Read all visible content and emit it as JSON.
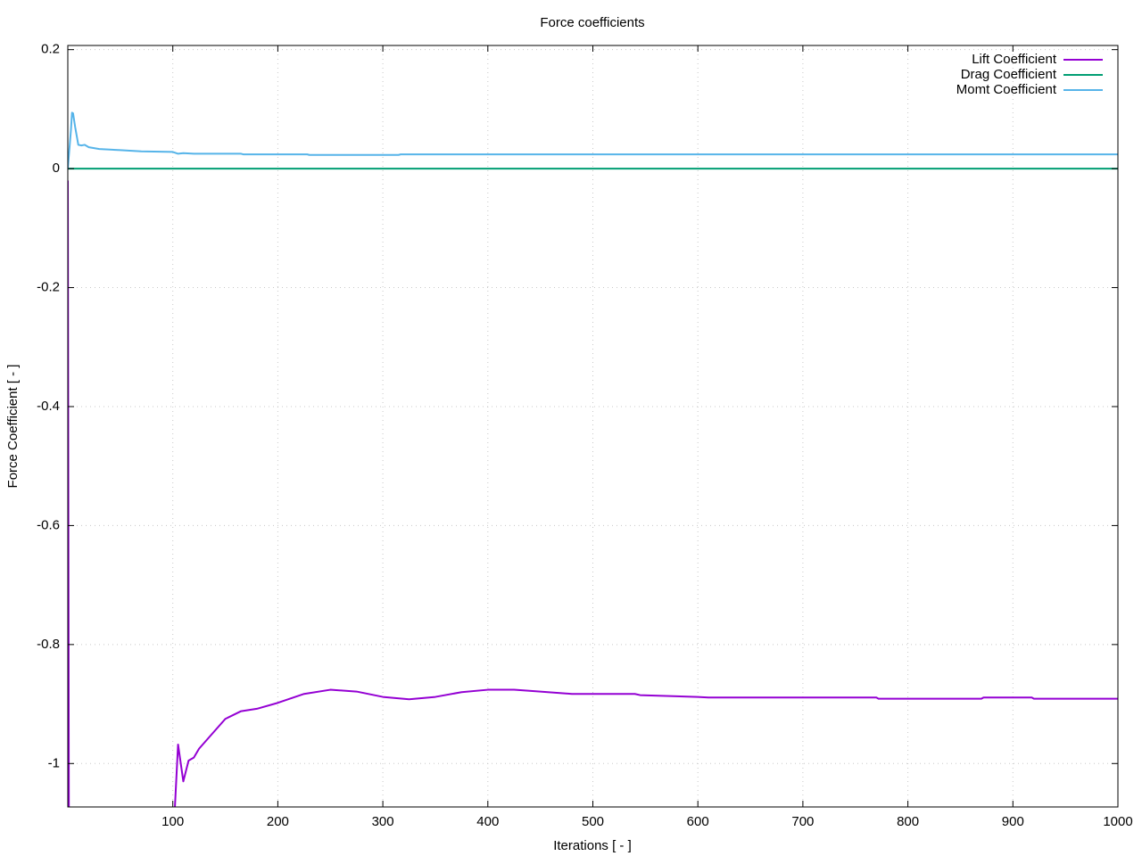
{
  "chart_data": {
    "type": "line",
    "title": "Force coefficients",
    "xlabel": "Iterations [ - ]",
    "ylabel": "Force Coefficient [ - ]",
    "xlim": [
      0,
      1000
    ],
    "ylim": [
      -1.073,
      0.207
    ],
    "xticks": [
      100,
      200,
      300,
      400,
      500,
      600,
      700,
      800,
      900,
      1000
    ],
    "yticks": [
      0.2,
      0,
      -0.2,
      -0.4,
      -0.6,
      -0.8,
      -1
    ],
    "grid": true,
    "legend": "top-right",
    "series": [
      {
        "name": "Lift Coefficient",
        "color": "#9400d3",
        "x": [
          0,
          1,
          50,
          102,
          105,
          110,
          115,
          120,
          125,
          135,
          150,
          165,
          180,
          200,
          225,
          250,
          275,
          300,
          325,
          350,
          375,
          400,
          425,
          450,
          480,
          540,
          545,
          600,
          610,
          770,
          772,
          870,
          872,
          918,
          920,
          1000
        ],
        "values": [
          -0.02,
          -1.073,
          null,
          -1.073,
          -0.968,
          -1.03,
          -0.995,
          -0.99,
          -0.975,
          -0.955,
          -0.925,
          -0.912,
          -0.908,
          -0.898,
          -0.883,
          -0.876,
          -0.879,
          -0.888,
          -0.892,
          -0.888,
          -0.88,
          -0.876,
          -0.876,
          -0.879,
          -0.883,
          -0.883,
          -0.885,
          -0.888,
          -0.889,
          -0.889,
          -0.891,
          -0.891,
          -0.889,
          -0.889,
          -0.891,
          -0.891
        ]
      },
      {
        "name": "Drag Coefficient",
        "color": "#009e73",
        "x": [
          0,
          1000
        ],
        "values": [
          0,
          0
        ]
      },
      {
        "name": "Momt Coefficient",
        "color": "#56b4e9",
        "x": [
          0,
          3,
          4,
          5,
          7,
          10,
          13,
          16,
          20,
          30,
          50,
          70,
          100,
          105,
          110,
          120,
          165,
          167,
          228,
          230,
          315,
          317,
          1000
        ],
        "values": [
          0,
          0.065,
          0.094,
          0.093,
          0.07,
          0.04,
          0.039,
          0.04,
          0.036,
          0.033,
          0.031,
          0.029,
          0.028,
          0.025,
          0.026,
          0.025,
          0.025,
          0.024,
          0.024,
          0.023,
          0.023,
          0.024,
          0.024
        ]
      }
    ]
  }
}
